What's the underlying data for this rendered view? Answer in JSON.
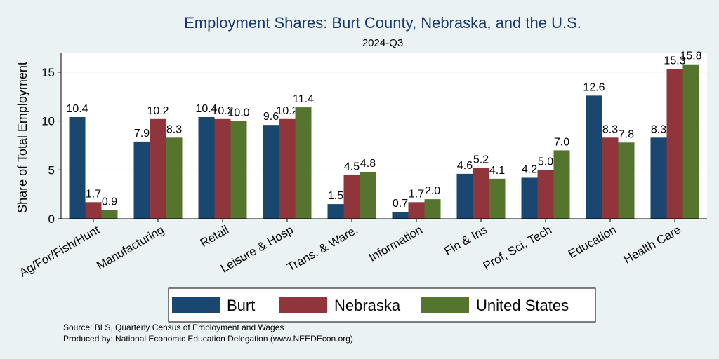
{
  "chart_data": {
    "type": "bar",
    "title": "Employment Shares: Burt County, Nebraska, and the U.S.",
    "subtitle": "2024-Q3",
    "ylabel": "Share of Total Employment",
    "xlabel": "",
    "ylim": [
      0,
      17
    ],
    "yticks": [
      0,
      5,
      10,
      15
    ],
    "categories": [
      "Ag/For/Fish/Hunt",
      "Manufacturing",
      "Retail",
      "Leisure & Hosp",
      "Trans. & Ware.",
      "Information",
      "Fin & Ins",
      "Prof, Sci, Tech",
      "Education",
      "Health Care"
    ],
    "series": [
      {
        "name": "Burt",
        "color": "#1a476f",
        "values": [
          10.4,
          7.9,
          10.4,
          9.6,
          1.5,
          0.7,
          4.6,
          4.2,
          12.6,
          8.3
        ],
        "labels": [
          "10.4",
          "7.9",
          "10.4",
          "9.6",
          "1.5",
          "0.7",
          "4.6",
          "4.2",
          "12.6",
          "8.3"
        ]
      },
      {
        "name": "Nebraska",
        "color": "#90353b",
        "values": [
          1.7,
          10.2,
          10.2,
          10.2,
          4.5,
          1.7,
          5.2,
          5.0,
          8.3,
          15.3
        ],
        "labels": [
          "1.7",
          "10.2",
          "10.2",
          "10.2",
          "4.5",
          "1.7",
          "5.2",
          "5.0",
          "8.3",
          "15.3"
        ]
      },
      {
        "name": "United States",
        "color": "#55752f",
        "values": [
          0.9,
          8.3,
          10.0,
          11.4,
          4.8,
          2.0,
          4.1,
          7.0,
          7.8,
          15.8
        ],
        "labels": [
          "0.9",
          "8.3",
          "10.0",
          "11.4",
          "4.8",
          "2.0",
          "4.1",
          "7.0",
          "7.8",
          "15.8"
        ]
      }
    ],
    "grid": true,
    "legend": "bottom",
    "notes": [
      "Source: BLS, Quarterly Census of Employment and Wages",
      "Produced by: National Economic Education Delegation (www.NEEDEcon.org)"
    ]
  }
}
